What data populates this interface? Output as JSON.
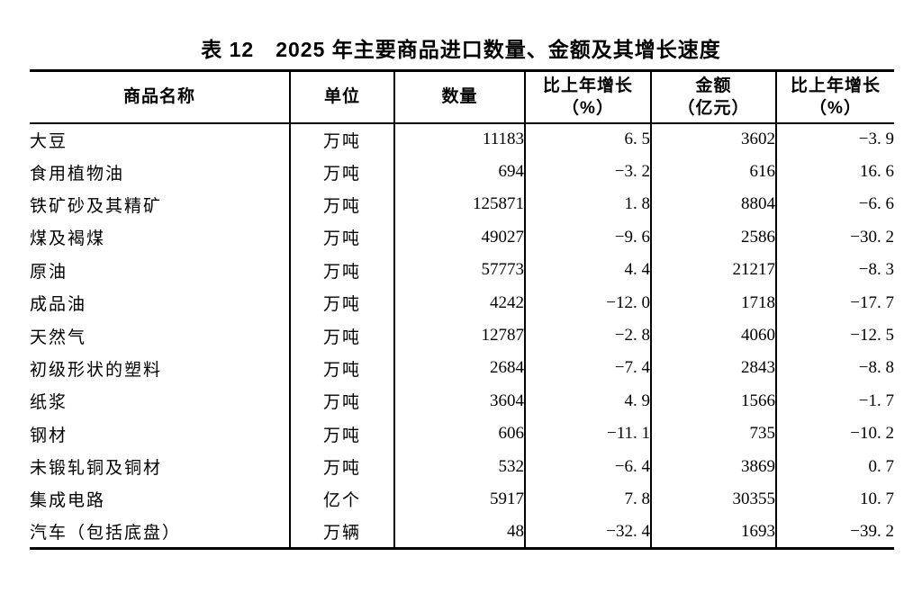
{
  "page": {
    "background_color": "#ffffff",
    "text_color": "#000000",
    "border_color": "#000000"
  },
  "title": "表 12　2025 年主要商品进口数量、金额及其增长速度",
  "table": {
    "headers": [
      {
        "label": "商品名称",
        "sub": ""
      },
      {
        "label": "单位",
        "sub": ""
      },
      {
        "label": "数量",
        "sub": ""
      },
      {
        "label": "比上年增长",
        "sub": "（%）"
      },
      {
        "label": "金额",
        "sub": "（亿元）"
      },
      {
        "label": "比上年增长",
        "sub": "（%）"
      }
    ],
    "rows": [
      {
        "name": "大豆",
        "unit": "万吨",
        "quantity": "11183",
        "quantity_growth": "6. 5",
        "amount": "3602",
        "amount_growth": "−3. 9"
      },
      {
        "name": "食用植物油",
        "unit": "万吨",
        "quantity": "694",
        "quantity_growth": "−3. 2",
        "amount": "616",
        "amount_growth": "16. 6"
      },
      {
        "name": "铁矿砂及其精矿",
        "unit": "万吨",
        "quantity": "125871",
        "quantity_growth": "1. 8",
        "amount": "8804",
        "amount_growth": "−6. 6"
      },
      {
        "name": "煤及褐煤",
        "unit": "万吨",
        "quantity": "49027",
        "quantity_growth": "−9. 6",
        "amount": "2586",
        "amount_growth": "−30. 2"
      },
      {
        "name": "原油",
        "unit": "万吨",
        "quantity": "57773",
        "quantity_growth": "4. 4",
        "amount": "21217",
        "amount_growth": "−8. 3"
      },
      {
        "name": "成品油",
        "unit": "万吨",
        "quantity": "4242",
        "quantity_growth": "−12. 0",
        "amount": "1718",
        "amount_growth": "−17. 7"
      },
      {
        "name": "天然气",
        "unit": "万吨",
        "quantity": "12787",
        "quantity_growth": "−2. 8",
        "amount": "4060",
        "amount_growth": "−12. 5"
      },
      {
        "name": "初级形状的塑料",
        "unit": "万吨",
        "quantity": "2684",
        "quantity_growth": "−7. 4",
        "amount": "2843",
        "amount_growth": "−8. 8"
      },
      {
        "name": "纸浆",
        "unit": "万吨",
        "quantity": "3604",
        "quantity_growth": "4. 9",
        "amount": "1566",
        "amount_growth": "−1. 7"
      },
      {
        "name": "钢材",
        "unit": "万吨",
        "quantity": "606",
        "quantity_growth": "−11. 1",
        "amount": "735",
        "amount_growth": "−10. 2"
      },
      {
        "name": "未锻轧铜及铜材",
        "unit": "万吨",
        "quantity": "532",
        "quantity_growth": "−6. 4",
        "amount": "3869",
        "amount_growth": "0. 7"
      },
      {
        "name": "集成电路",
        "unit": "亿个",
        "quantity": "5917",
        "quantity_growth": "7. 8",
        "amount": "30355",
        "amount_growth": "10. 7"
      },
      {
        "name": "汽车（包括底盘）",
        "unit": "万辆",
        "quantity": "48",
        "quantity_growth": "−32. 4",
        "amount": "1693",
        "amount_growth": "−39. 2"
      }
    ]
  }
}
